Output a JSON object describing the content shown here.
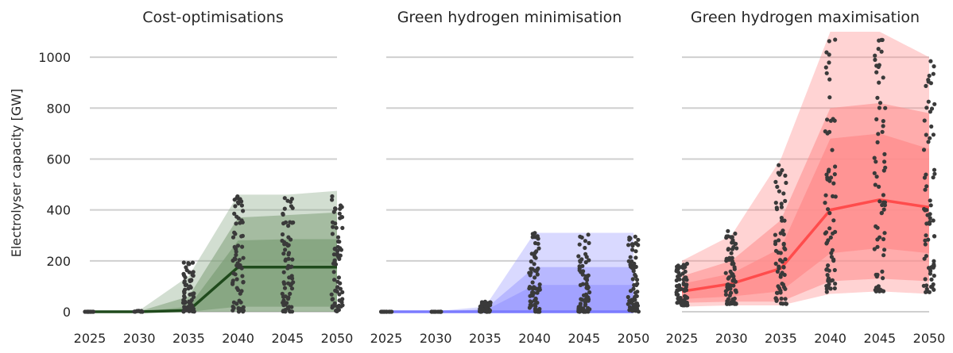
{
  "figure": {
    "ylabel": "Electrolyser capacity [GW]",
    "ylim": [
      0,
      1100
    ],
    "yticks": [
      0,
      200,
      400,
      600,
      800,
      1000
    ],
    "xticks": [
      2025,
      2030,
      2035,
      2040,
      2045,
      2050
    ]
  },
  "chart_data": [
    {
      "type": "area",
      "title": "Cost-optimisations",
      "color": "#1f4a1c",
      "band_color": "#7fa07a",
      "x": [
        2025,
        2030,
        2035,
        2040,
        2045,
        2050
      ],
      "median": [
        0,
        0,
        5,
        175,
        175,
        175
      ],
      "bands": [
        {
          "opacity": 0.35,
          "low": [
            0,
            0,
            0,
            0,
            0,
            0
          ],
          "high": [
            2,
            5,
            140,
            460,
            460,
            475
          ]
        },
        {
          "opacity": 0.55,
          "low": [
            0,
            0,
            0,
            0,
            0,
            0
          ],
          "high": [
            0,
            2,
            60,
            370,
            380,
            390
          ]
        },
        {
          "opacity": 0.75,
          "low": [
            0,
            0,
            0,
            20,
            20,
            20
          ],
          "high": [
            0,
            0,
            20,
            280,
            285,
            285
          ]
        }
      ],
      "dots": {
        "x": [
          2025,
          2030,
          2035,
          2040,
          2045,
          2050
        ],
        "min": [
          0,
          0,
          0,
          0,
          0,
          0
        ],
        "max": [
          0,
          5,
          195,
          455,
          460,
          475
        ]
      }
    },
    {
      "type": "area",
      "title": "Green hydrogen minimisation",
      "color": "#7b7bff",
      "band_color": "#9c9cff",
      "x": [
        2025,
        2030,
        2035,
        2040,
        2045,
        2050
      ],
      "median": [
        0,
        0,
        0,
        0,
        0,
        0
      ],
      "bands": [
        {
          "opacity": 0.38,
          "low": [
            0,
            0,
            0,
            0,
            0,
            0
          ],
          "high": [
            2,
            2,
            20,
            310,
            310,
            310
          ]
        },
        {
          "opacity": 0.55,
          "low": [
            0,
            0,
            0,
            0,
            0,
            0
          ],
          "high": [
            0,
            0,
            10,
            175,
            175,
            175
          ]
        },
        {
          "opacity": 0.8,
          "low": [
            0,
            0,
            0,
            0,
            0,
            0
          ],
          "high": [
            0,
            0,
            5,
            105,
            105,
            105
          ]
        }
      ],
      "dots": {
        "x": [
          2025,
          2030,
          2035,
          2040,
          2045,
          2050
        ],
        "min": [
          0,
          0,
          0,
          0,
          0,
          0
        ],
        "max": [
          0,
          0,
          40,
          310,
          310,
          310
        ]
      }
    },
    {
      "type": "area",
      "title": "Green hydrogen maximisation",
      "color": "#ff4c4c",
      "band_color": "#ff8c8c",
      "x": [
        2025,
        2030,
        2035,
        2040,
        2045,
        2050
      ],
      "median": [
        80,
        110,
        170,
        400,
        440,
        410
      ],
      "bands": [
        {
          "opacity": 0.38,
          "low": [
            20,
            25,
            25,
            70,
            80,
            70
          ],
          "high": [
            200,
            300,
            600,
            1100,
            1100,
            1000
          ]
        },
        {
          "opacity": 0.55,
          "low": [
            35,
            40,
            40,
            120,
            130,
            120
          ],
          "high": [
            140,
            200,
            360,
            800,
            820,
            780
          ]
        },
        {
          "opacity": 0.75,
          "low": [
            50,
            60,
            80,
            230,
            250,
            230
          ],
          "high": [
            110,
            150,
            250,
            680,
            700,
            640
          ]
        }
      ],
      "dots": {
        "x": [
          2025,
          2030,
          2035,
          2040,
          2045,
          2050
        ],
        "min": [
          25,
          30,
          30,
          75,
          80,
          75
        ],
        "max": [
          190,
          320,
          600,
          1100,
          1100,
          1000
        ]
      }
    }
  ]
}
